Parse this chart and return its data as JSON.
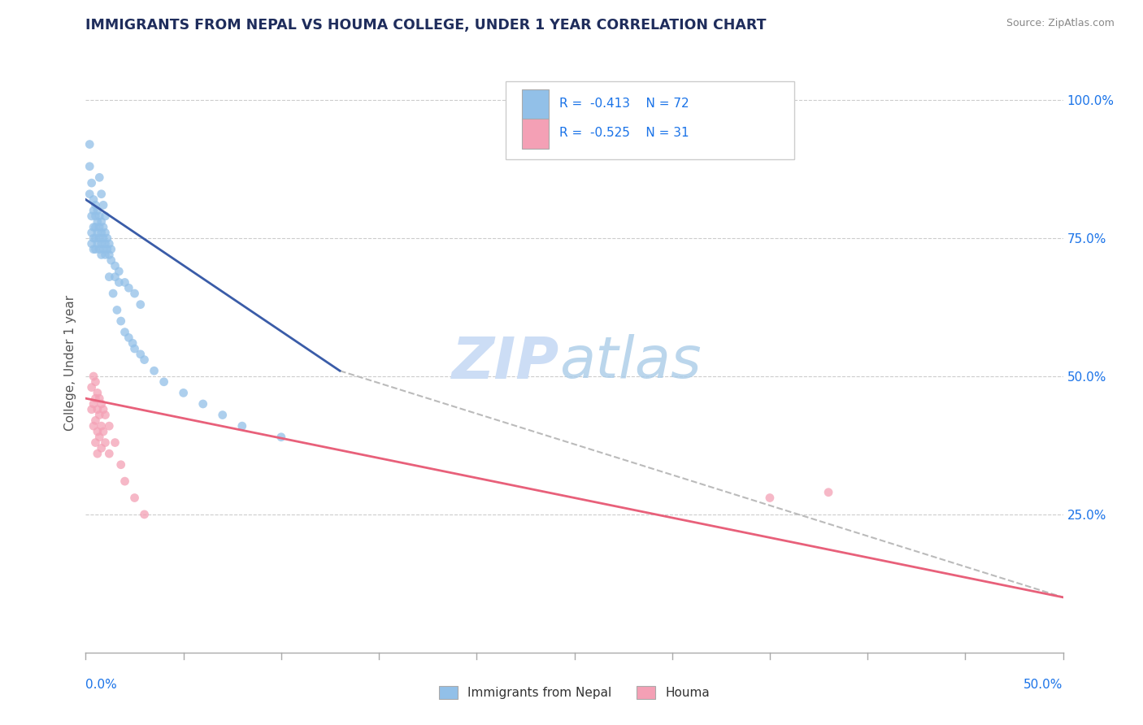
{
  "title": "IMMIGRANTS FROM NEPAL VS HOUMA COLLEGE, UNDER 1 YEAR CORRELATION CHART",
  "source_text": "Source: ZipAtlas.com",
  "ylabel": "College, Under 1 year",
  "ylabel_right_ticks": [
    "100.0%",
    "75.0%",
    "50.0%",
    "25.0%"
  ],
  "ylabel_right_vals": [
    1.0,
    0.75,
    0.5,
    0.25
  ],
  "legend_blue_label": "Immigrants from Nepal",
  "legend_pink_label": "Houma",
  "blue_color": "#92c0e8",
  "pink_color": "#f4a0b5",
  "blue_line_color": "#3a5ca8",
  "pink_line_color": "#e8607a",
  "dashed_line_color": "#bbbbbb",
  "background_color": "#ffffff",
  "title_color": "#1f2d5c",
  "axis_label_color": "#1a73e8",
  "xlim": [
    0.0,
    0.5
  ],
  "ylim": [
    0.0,
    1.05
  ],
  "blue_scatter": [
    [
      0.002,
      0.92
    ],
    [
      0.002,
      0.88
    ],
    [
      0.002,
      0.83
    ],
    [
      0.003,
      0.85
    ],
    [
      0.003,
      0.79
    ],
    [
      0.003,
      0.76
    ],
    [
      0.003,
      0.74
    ],
    [
      0.004,
      0.82
    ],
    [
      0.004,
      0.8
    ],
    [
      0.004,
      0.77
    ],
    [
      0.004,
      0.75
    ],
    [
      0.004,
      0.73
    ],
    [
      0.005,
      0.81
    ],
    [
      0.005,
      0.79
    ],
    [
      0.005,
      0.77
    ],
    [
      0.005,
      0.75
    ],
    [
      0.005,
      0.73
    ],
    [
      0.006,
      0.8
    ],
    [
      0.006,
      0.78
    ],
    [
      0.006,
      0.76
    ],
    [
      0.006,
      0.74
    ],
    [
      0.007,
      0.79
    ],
    [
      0.007,
      0.77
    ],
    [
      0.007,
      0.75
    ],
    [
      0.007,
      0.73
    ],
    [
      0.008,
      0.78
    ],
    [
      0.008,
      0.76
    ],
    [
      0.008,
      0.74
    ],
    [
      0.008,
      0.72
    ],
    [
      0.009,
      0.77
    ],
    [
      0.009,
      0.75
    ],
    [
      0.009,
      0.73
    ],
    [
      0.01,
      0.76
    ],
    [
      0.01,
      0.74
    ],
    [
      0.01,
      0.72
    ],
    [
      0.011,
      0.75
    ],
    [
      0.011,
      0.73
    ],
    [
      0.012,
      0.74
    ],
    [
      0.012,
      0.72
    ],
    [
      0.013,
      0.73
    ],
    [
      0.013,
      0.71
    ],
    [
      0.015,
      0.7
    ],
    [
      0.015,
      0.68
    ],
    [
      0.017,
      0.69
    ],
    [
      0.017,
      0.67
    ],
    [
      0.02,
      0.67
    ],
    [
      0.022,
      0.66
    ],
    [
      0.025,
      0.65
    ],
    [
      0.028,
      0.63
    ],
    [
      0.007,
      0.86
    ],
    [
      0.008,
      0.83
    ],
    [
      0.009,
      0.81
    ],
    [
      0.01,
      0.79
    ],
    [
      0.012,
      0.68
    ],
    [
      0.014,
      0.65
    ],
    [
      0.016,
      0.62
    ],
    [
      0.018,
      0.6
    ],
    [
      0.02,
      0.58
    ],
    [
      0.022,
      0.57
    ],
    [
      0.024,
      0.56
    ],
    [
      0.025,
      0.55
    ],
    [
      0.028,
      0.54
    ],
    [
      0.03,
      0.53
    ],
    [
      0.035,
      0.51
    ],
    [
      0.04,
      0.49
    ],
    [
      0.05,
      0.47
    ],
    [
      0.06,
      0.45
    ],
    [
      0.07,
      0.43
    ],
    [
      0.08,
      0.41
    ],
    [
      0.1,
      0.39
    ]
  ],
  "pink_scatter": [
    [
      0.003,
      0.48
    ],
    [
      0.003,
      0.44
    ],
    [
      0.004,
      0.5
    ],
    [
      0.004,
      0.45
    ],
    [
      0.004,
      0.41
    ],
    [
      0.005,
      0.49
    ],
    [
      0.005,
      0.46
    ],
    [
      0.005,
      0.42
    ],
    [
      0.005,
      0.38
    ],
    [
      0.006,
      0.47
    ],
    [
      0.006,
      0.44
    ],
    [
      0.006,
      0.4
    ],
    [
      0.006,
      0.36
    ],
    [
      0.007,
      0.46
    ],
    [
      0.007,
      0.43
    ],
    [
      0.007,
      0.39
    ],
    [
      0.008,
      0.45
    ],
    [
      0.008,
      0.41
    ],
    [
      0.008,
      0.37
    ],
    [
      0.009,
      0.44
    ],
    [
      0.009,
      0.4
    ],
    [
      0.01,
      0.43
    ],
    [
      0.01,
      0.38
    ],
    [
      0.012,
      0.41
    ],
    [
      0.012,
      0.36
    ],
    [
      0.015,
      0.38
    ],
    [
      0.018,
      0.34
    ],
    [
      0.02,
      0.31
    ],
    [
      0.025,
      0.28
    ],
    [
      0.03,
      0.25
    ],
    [
      0.35,
      0.28
    ],
    [
      0.38,
      0.29
    ]
  ],
  "blue_line_x": [
    0.0,
    0.13
  ],
  "blue_line_y": [
    0.82,
    0.51
  ],
  "pink_line_x": [
    0.0,
    0.5
  ],
  "pink_line_y": [
    0.46,
    0.1
  ],
  "dashed_line_x": [
    0.13,
    0.5
  ],
  "dashed_line_y": [
    0.51,
    0.1
  ]
}
